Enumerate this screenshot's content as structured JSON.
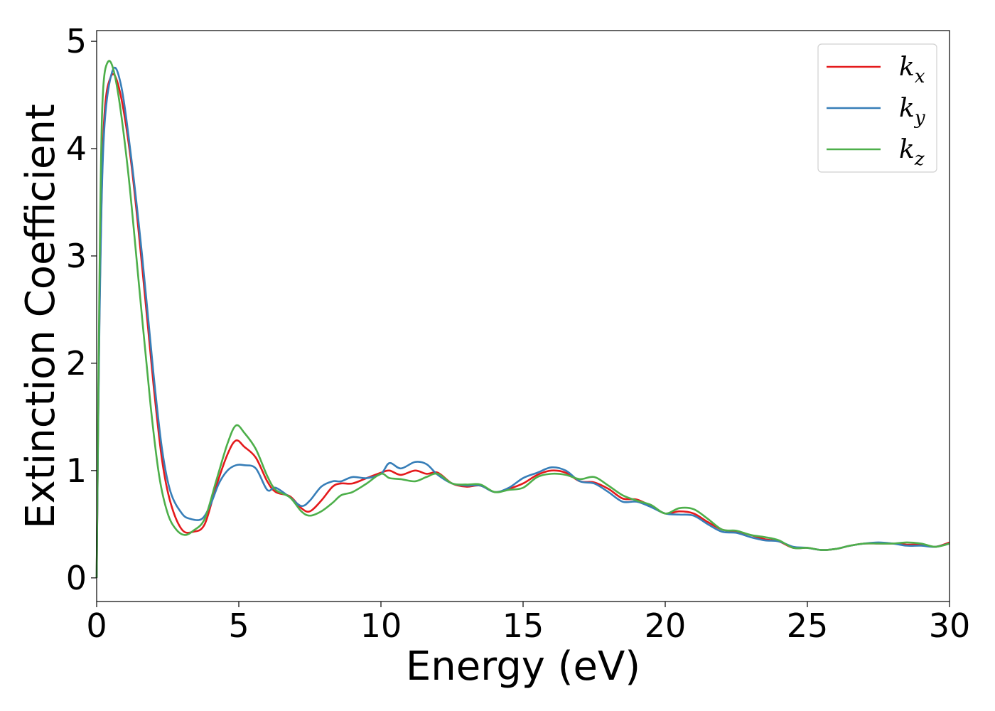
{
  "chart_data": {
    "type": "line",
    "title": "",
    "xlabel": "Energy (eV)",
    "ylabel": "Extinction Coefficient",
    "xlim": [
      0,
      30
    ],
    "ylim": [
      -0.22,
      5.1
    ],
    "xticks": [
      0,
      5,
      10,
      15,
      20,
      25,
      30
    ],
    "yticks": [
      0,
      1,
      2,
      3,
      4,
      5
    ],
    "xtick_labels": [
      "0",
      "5",
      "10",
      "15",
      "20",
      "25",
      "30"
    ],
    "ytick_labels": [
      "0",
      "1",
      "2",
      "3",
      "4",
      "5"
    ],
    "grid": false,
    "legend_position": "top-right",
    "series": [
      {
        "name": "k_x",
        "label_base": "k",
        "label_sub": "x",
        "color": "#e41a1c",
        "x": [
          0,
          0.1,
          0.25,
          0.5,
          0.8,
          1.2,
          1.6,
          2.0,
          2.3,
          2.6,
          3.0,
          3.4,
          3.8,
          4.2,
          4.6,
          4.9,
          5.2,
          5.6,
          6.0,
          6.3,
          6.8,
          7.2,
          7.5,
          7.9,
          8.3,
          8.6,
          9.0,
          9.5,
          10.0,
          10.3,
          10.7,
          11.2,
          11.6,
          12.0,
          12.5,
          13.0,
          13.5,
          14.0,
          14.5,
          15.0,
          15.5,
          16.0,
          16.5,
          17.0,
          17.5,
          18.0,
          18.5,
          19.0,
          19.5,
          20.0,
          20.5,
          21.0,
          21.5,
          22.0,
          22.5,
          23.0,
          23.5,
          24.0,
          24.5,
          25.0,
          25.5,
          26.0,
          26.5,
          27.0,
          27.5,
          28.0,
          28.5,
          29.0,
          29.5,
          30.0
        ],
        "y": [
          0.0,
          2.5,
          4.2,
          4.67,
          4.55,
          3.9,
          2.9,
          1.8,
          1.1,
          0.7,
          0.45,
          0.43,
          0.5,
          0.85,
          1.15,
          1.28,
          1.22,
          1.12,
          0.9,
          0.8,
          0.76,
          0.65,
          0.62,
          0.72,
          0.85,
          0.88,
          0.88,
          0.93,
          0.98,
          1.0,
          0.96,
          1.0,
          0.97,
          0.98,
          0.88,
          0.85,
          0.86,
          0.8,
          0.83,
          0.88,
          0.96,
          1.0,
          0.98,
          0.9,
          0.89,
          0.83,
          0.74,
          0.73,
          0.67,
          0.6,
          0.62,
          0.6,
          0.52,
          0.45,
          0.43,
          0.4,
          0.36,
          0.34,
          0.28,
          0.28,
          0.26,
          0.27,
          0.3,
          0.32,
          0.32,
          0.32,
          0.31,
          0.31,
          0.29,
          0.33
        ]
      },
      {
        "name": "k_y",
        "label_base": "k",
        "label_sub": "y",
        "color": "#377eb8",
        "x": [
          0,
          0.1,
          0.25,
          0.55,
          0.85,
          1.2,
          1.6,
          2.0,
          2.3,
          2.6,
          3.0,
          3.3,
          3.7,
          4.0,
          4.3,
          4.6,
          4.9,
          5.2,
          5.6,
          6.0,
          6.3,
          6.8,
          7.2,
          7.5,
          7.9,
          8.3,
          8.6,
          9.0,
          9.5,
          10.0,
          10.3,
          10.7,
          11.2,
          11.6,
          12.0,
          12.5,
          13.0,
          13.5,
          14.0,
          14.5,
          15.0,
          15.5,
          16.0,
          16.5,
          17.0,
          17.5,
          18.0,
          18.5,
          19.0,
          19.5,
          20.0,
          20.5,
          21.0,
          21.5,
          22.0,
          22.5,
          23.0,
          23.5,
          24.0,
          24.5,
          25.0,
          25.5,
          26.0,
          26.5,
          27.0,
          27.5,
          28.0,
          28.5,
          29.0,
          29.5,
          30.0
        ],
        "y": [
          0.0,
          2.4,
          4.1,
          4.72,
          4.6,
          3.95,
          3.0,
          1.9,
          1.2,
          0.8,
          0.6,
          0.55,
          0.55,
          0.68,
          0.88,
          1.0,
          1.05,
          1.05,
          1.02,
          0.82,
          0.84,
          0.75,
          0.67,
          0.72,
          0.85,
          0.9,
          0.9,
          0.94,
          0.93,
          0.97,
          1.07,
          1.02,
          1.08,
          1.06,
          0.96,
          0.88,
          0.86,
          0.86,
          0.8,
          0.84,
          0.93,
          0.98,
          1.03,
          1.0,
          0.9,
          0.88,
          0.8,
          0.71,
          0.71,
          0.66,
          0.6,
          0.59,
          0.58,
          0.5,
          0.43,
          0.42,
          0.38,
          0.35,
          0.34,
          0.29,
          0.28,
          0.26,
          0.27,
          0.3,
          0.32,
          0.33,
          0.32,
          0.3,
          0.3,
          0.29,
          0.32
        ]
      },
      {
        "name": "k_z",
        "label_base": "k",
        "label_sub": "z",
        "color": "#4daf4a",
        "x": [
          0,
          0.1,
          0.2,
          0.4,
          0.7,
          1.1,
          1.5,
          1.9,
          2.2,
          2.5,
          2.8,
          3.1,
          3.4,
          3.8,
          4.2,
          4.6,
          4.9,
          5.2,
          5.6,
          6.0,
          6.3,
          6.8,
          7.2,
          7.5,
          7.9,
          8.3,
          8.6,
          9.0,
          9.5,
          10.0,
          10.3,
          10.7,
          11.2,
          11.6,
          12.0,
          12.5,
          13.0,
          13.5,
          14.0,
          14.5,
          15.0,
          15.5,
          16.0,
          16.5,
          17.0,
          17.5,
          18.0,
          18.5,
          19.0,
          19.5,
          20.0,
          20.5,
          21.0,
          21.5,
          22.0,
          22.5,
          23.0,
          23.5,
          24.0,
          24.5,
          25.0,
          25.5,
          26.0,
          26.5,
          27.0,
          27.5,
          28.0,
          28.5,
          29.0,
          29.5,
          30.0
        ],
        "y": [
          0.0,
          2.8,
          4.4,
          4.81,
          4.6,
          3.8,
          2.7,
          1.6,
          0.95,
          0.6,
          0.45,
          0.4,
          0.44,
          0.55,
          0.9,
          1.25,
          1.42,
          1.35,
          1.2,
          0.95,
          0.82,
          0.75,
          0.62,
          0.58,
          0.62,
          0.7,
          0.77,
          0.8,
          0.88,
          0.97,
          0.93,
          0.92,
          0.9,
          0.94,
          0.97,
          0.88,
          0.87,
          0.87,
          0.8,
          0.82,
          0.84,
          0.94,
          0.97,
          0.96,
          0.92,
          0.94,
          0.86,
          0.77,
          0.72,
          0.68,
          0.6,
          0.65,
          0.64,
          0.55,
          0.45,
          0.44,
          0.4,
          0.38,
          0.35,
          0.28,
          0.28,
          0.26,
          0.27,
          0.3,
          0.32,
          0.32,
          0.32,
          0.33,
          0.32,
          0.29,
          0.32
        ]
      }
    ]
  }
}
